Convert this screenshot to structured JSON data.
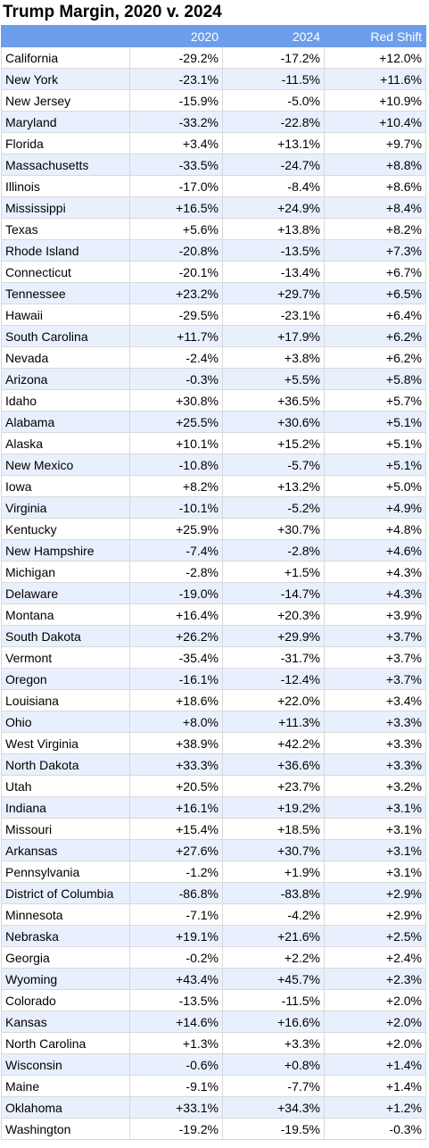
{
  "title": "Trump Margin, 2020 v. 2024",
  "columns": [
    "",
    "2020",
    "2024",
    "Red Shift"
  ],
  "colors": {
    "header_bg": "#6d9eeb",
    "header_text": "#ffffff",
    "band_alt": "#e8f0fe"
  },
  "rows": [
    {
      "state": "California",
      "y2020": "-29.2%",
      "y2024": "-17.2%",
      "shift": "+12.0%"
    },
    {
      "state": "New York",
      "y2020": "-23.1%",
      "y2024": "-11.5%",
      "shift": "+11.6%"
    },
    {
      "state": "New Jersey",
      "y2020": "-15.9%",
      "y2024": "-5.0%",
      "shift": "+10.9%"
    },
    {
      "state": "Maryland",
      "y2020": "-33.2%",
      "y2024": "-22.8%",
      "shift": "+10.4%"
    },
    {
      "state": "Florida",
      "y2020": "+3.4%",
      "y2024": "+13.1%",
      "shift": "+9.7%"
    },
    {
      "state": "Massachusetts",
      "y2020": "-33.5%",
      "y2024": "-24.7%",
      "shift": "+8.8%"
    },
    {
      "state": "Illinois",
      "y2020": "-17.0%",
      "y2024": "-8.4%",
      "shift": "+8.6%"
    },
    {
      "state": "Mississippi",
      "y2020": "+16.5%",
      "y2024": "+24.9%",
      "shift": "+8.4%"
    },
    {
      "state": "Texas",
      "y2020": "+5.6%",
      "y2024": "+13.8%",
      "shift": "+8.2%"
    },
    {
      "state": "Rhode Island",
      "y2020": "-20.8%",
      "y2024": "-13.5%",
      "shift": "+7.3%"
    },
    {
      "state": "Connecticut",
      "y2020": "-20.1%",
      "y2024": "-13.4%",
      "shift": "+6.7%"
    },
    {
      "state": "Tennessee",
      "y2020": "+23.2%",
      "y2024": "+29.7%",
      "shift": "+6.5%"
    },
    {
      "state": "Hawaii",
      "y2020": "-29.5%",
      "y2024": "-23.1%",
      "shift": "+6.4%"
    },
    {
      "state": "South Carolina",
      "y2020": "+11.7%",
      "y2024": "+17.9%",
      "shift": "+6.2%"
    },
    {
      "state": "Nevada",
      "y2020": "-2.4%",
      "y2024": "+3.8%",
      "shift": "+6.2%"
    },
    {
      "state": "Arizona",
      "y2020": "-0.3%",
      "y2024": "+5.5%",
      "shift": "+5.8%"
    },
    {
      "state": "Idaho",
      "y2020": "+30.8%",
      "y2024": "+36.5%",
      "shift": "+5.7%"
    },
    {
      "state": "Alabama",
      "y2020": "+25.5%",
      "y2024": "+30.6%",
      "shift": "+5.1%"
    },
    {
      "state": "Alaska",
      "y2020": "+10.1%",
      "y2024": "+15.2%",
      "shift": "+5.1%"
    },
    {
      "state": "New Mexico",
      "y2020": "-10.8%",
      "y2024": "-5.7%",
      "shift": "+5.1%"
    },
    {
      "state": "Iowa",
      "y2020": "+8.2%",
      "y2024": "+13.2%",
      "shift": "+5.0%"
    },
    {
      "state": "Virginia",
      "y2020": "-10.1%",
      "y2024": "-5.2%",
      "shift": "+4.9%"
    },
    {
      "state": "Kentucky",
      "y2020": "+25.9%",
      "y2024": "+30.7%",
      "shift": "+4.8%"
    },
    {
      "state": "New Hampshire",
      "y2020": "-7.4%",
      "y2024": "-2.8%",
      "shift": "+4.6%"
    },
    {
      "state": "Michigan",
      "y2020": "-2.8%",
      "y2024": "+1.5%",
      "shift": "+4.3%"
    },
    {
      "state": "Delaware",
      "y2020": "-19.0%",
      "y2024": "-14.7%",
      "shift": "+4.3%"
    },
    {
      "state": "Montana",
      "y2020": "+16.4%",
      "y2024": "+20.3%",
      "shift": "+3.9%"
    },
    {
      "state": "South Dakota",
      "y2020": "+26.2%",
      "y2024": "+29.9%",
      "shift": "+3.7%"
    },
    {
      "state": "Vermont",
      "y2020": "-35.4%",
      "y2024": "-31.7%",
      "shift": "+3.7%"
    },
    {
      "state": "Oregon",
      "y2020": "-16.1%",
      "y2024": "-12.4%",
      "shift": "+3.7%"
    },
    {
      "state": "Louisiana",
      "y2020": "+18.6%",
      "y2024": "+22.0%",
      "shift": "+3.4%"
    },
    {
      "state": "Ohio",
      "y2020": "+8.0%",
      "y2024": "+11.3%",
      "shift": "+3.3%"
    },
    {
      "state": "West Virginia",
      "y2020": "+38.9%",
      "y2024": "+42.2%",
      "shift": "+3.3%"
    },
    {
      "state": "North Dakota",
      "y2020": "+33.3%",
      "y2024": "+36.6%",
      "shift": "+3.3%"
    },
    {
      "state": "Utah",
      "y2020": "+20.5%",
      "y2024": "+23.7%",
      "shift": "+3.2%"
    },
    {
      "state": "Indiana",
      "y2020": "+16.1%",
      "y2024": "+19.2%",
      "shift": "+3.1%"
    },
    {
      "state": "Missouri",
      "y2020": "+15.4%",
      "y2024": "+18.5%",
      "shift": "+3.1%"
    },
    {
      "state": "Arkansas",
      "y2020": "+27.6%",
      "y2024": "+30.7%",
      "shift": "+3.1%"
    },
    {
      "state": "Pennsylvania",
      "y2020": "-1.2%",
      "y2024": "+1.9%",
      "shift": "+3.1%"
    },
    {
      "state": "District of Columbia",
      "y2020": "-86.8%",
      "y2024": "-83.8%",
      "shift": "+2.9%"
    },
    {
      "state": "Minnesota",
      "y2020": "-7.1%",
      "y2024": "-4.2%",
      "shift": "+2.9%"
    },
    {
      "state": "Nebraska",
      "y2020": "+19.1%",
      "y2024": "+21.6%",
      "shift": "+2.5%"
    },
    {
      "state": "Georgia",
      "y2020": "-0.2%",
      "y2024": "+2.2%",
      "shift": "+2.4%"
    },
    {
      "state": "Wyoming",
      "y2020": "+43.4%",
      "y2024": "+45.7%",
      "shift": "+2.3%"
    },
    {
      "state": "Colorado",
      "y2020": "-13.5%",
      "y2024": "-11.5%",
      "shift": "+2.0%"
    },
    {
      "state": "Kansas",
      "y2020": "+14.6%",
      "y2024": "+16.6%",
      "shift": "+2.0%"
    },
    {
      "state": "North Carolina",
      "y2020": "+1.3%",
      "y2024": "+3.3%",
      "shift": "+2.0%"
    },
    {
      "state": "Wisconsin",
      "y2020": "-0.6%",
      "y2024": "+0.8%",
      "shift": "+1.4%"
    },
    {
      "state": "Maine",
      "y2020": "-9.1%",
      "y2024": "-7.7%",
      "shift": "+1.4%"
    },
    {
      "state": "Oklahoma",
      "y2020": "+33.1%",
      "y2024": "+34.3%",
      "shift": "+1.2%"
    },
    {
      "state": "Washington",
      "y2020": "-19.2%",
      "y2024": "-19.5%",
      "shift": "-0.3%"
    }
  ]
}
